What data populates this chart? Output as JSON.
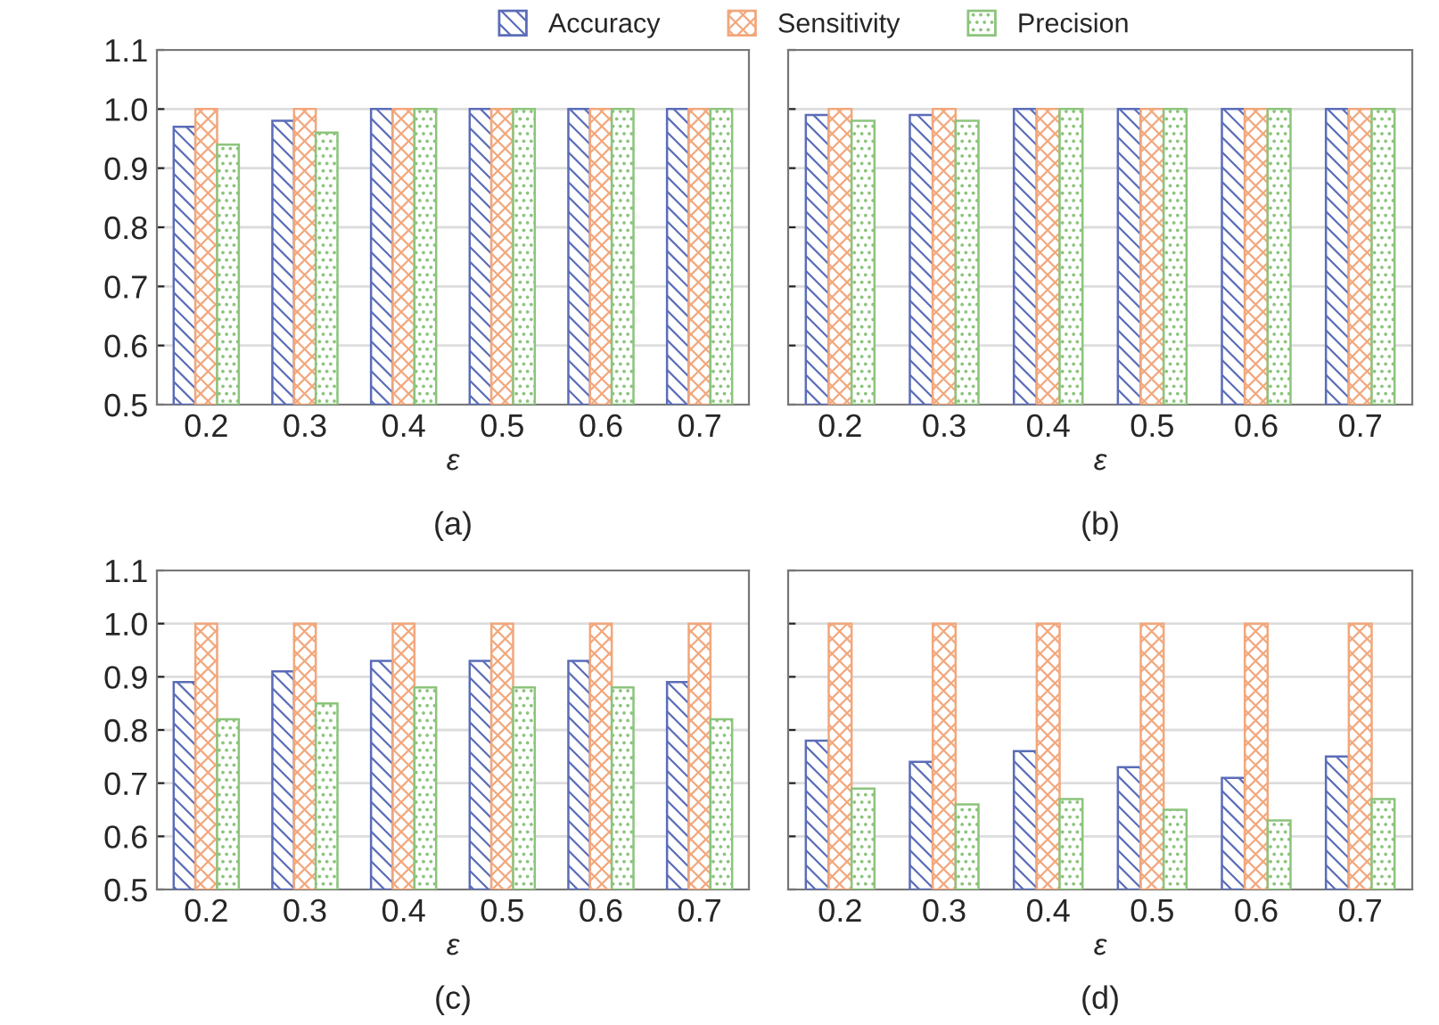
{
  "chart_data": [
    {
      "type": "bar",
      "categories": [
        "0.2",
        "0.3",
        "0.4",
        "0.5",
        "0.6",
        "0.7"
      ],
      "xlabel": "ε",
      "annotations": [
        "(a)"
      ],
      "ylim": [
        0.5,
        1.1
      ],
      "yticks": [
        {
          "value": 0.5,
          "label": "0.5"
        },
        {
          "value": 0.6,
          "label": "0.6"
        },
        {
          "value": 0.7,
          "label": "0.7"
        },
        {
          "value": 0.8,
          "label": "0.8"
        },
        {
          "value": 0.9,
          "label": "0.9"
        },
        {
          "value": 1.0,
          "label": "1.0"
        },
        {
          "value": 1.1,
          "label": "1.1"
        }
      ],
      "grid": "y",
      "legend": "top",
      "series": [
        {
          "name": "Accuracy",
          "color": "#5b6db8",
          "values": [
            0.97,
            0.98,
            1.0,
            1.0,
            1.0,
            1.0
          ]
        },
        {
          "name": "Sensitivity",
          "color": "#f2a77c",
          "values": [
            1.0,
            1.0,
            1.0,
            1.0,
            1.0,
            1.0
          ]
        },
        {
          "name": "Precision",
          "color": "#8cc47c",
          "values": [
            0.94,
            0.96,
            1.0,
            1.0,
            1.0,
            1.0
          ]
        }
      ]
    },
    {
      "type": "bar",
      "categories": [
        "0.2",
        "0.3",
        "0.4",
        "0.5",
        "0.6",
        "0.7"
      ],
      "xlabel": "ε",
      "annotations": [
        "(b)"
      ],
      "ylim": [
        0.5,
        1.1
      ],
      "yticks": [
        0.5,
        0.6,
        0.7,
        0.8,
        0.9,
        1.0,
        1.1
      ],
      "grid": "y",
      "tick_labels": "x",
      "series": [
        {
          "color": "#5b6db8",
          "values": [
            0.99,
            0.99,
            1.0,
            1.0,
            1.0,
            1.0
          ]
        },
        {
          "color": "#f2a77c",
          "values": [
            1.0,
            1.0,
            1.0,
            1.0,
            1.0,
            1.0
          ]
        },
        {
          "color": "#8cc47c",
          "values": [
            0.98,
            0.98,
            1.0,
            1.0,
            1.0,
            1.0
          ]
        }
      ]
    },
    {
      "type": "bar",
      "categories": [
        "0.2",
        "0.3",
        "0.4",
        "0.5",
        "0.6",
        "0.7"
      ],
      "xlabel": "ε",
      "annotations": [
        "(c)"
      ],
      "ylim": [
        0.5,
        1.1
      ],
      "yticks": [
        {
          "value": 0.5,
          "label": "0.5"
        },
        {
          "value": 0.6,
          "label": "0.6"
        },
        {
          "value": 0.7,
          "label": "0.7"
        },
        {
          "value": 0.8,
          "label": "0.8"
        },
        {
          "value": 0.9,
          "label": "0.9"
        },
        {
          "value": 1.0,
          "label": "1.0"
        },
        {
          "value": 1.1,
          "label": "1.1"
        }
      ],
      "grid": "y",
      "series": [
        {
          "color": "#5b6db8",
          "values": [
            0.89,
            0.91,
            0.93,
            0.93,
            0.93,
            0.89
          ]
        },
        {
          "color": "#f2a77c",
          "values": [
            1.0,
            1.0,
            1.0,
            1.0,
            1.0,
            1.0
          ]
        },
        {
          "color": "#8cc47c",
          "values": [
            0.82,
            0.85,
            0.88,
            0.88,
            0.88,
            0.82
          ]
        }
      ]
    },
    {
      "type": "bar",
      "categories": [
        "0.2",
        "0.3",
        "0.4",
        "0.5",
        "0.6",
        "0.7"
      ],
      "xlabel": "ε",
      "annotations": [
        "(d)"
      ],
      "ylim": [
        0.5,
        1.1
      ],
      "yticks": [
        0.5,
        0.6,
        0.7,
        0.8,
        0.9,
        1.0,
        1.1
      ],
      "grid": "y",
      "tick_labels": "x",
      "series": [
        {
          "color": "#5b6db8",
          "values": [
            0.78,
            0.74,
            0.76,
            0.73,
            0.71,
            0.75
          ]
        },
        {
          "color": "#f2a77c",
          "values": [
            1.0,
            1.0,
            1.0,
            1.0,
            1.0,
            1.0
          ]
        },
        {
          "color": "#8cc47c",
          "values": [
            0.69,
            0.66,
            0.67,
            0.65,
            0.63,
            0.67
          ]
        }
      ]
    }
  ]
}
